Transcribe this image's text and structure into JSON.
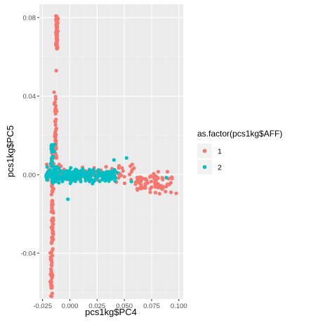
{
  "chart_data": {
    "type": "scatter",
    "xlabel": "pcs1kg$PC4",
    "ylabel": "pcs1kg$PC5",
    "xlim": [
      -0.028,
      0.104
    ],
    "ylim": [
      -0.0633,
      0.0868
    ],
    "x_ticks": [
      -0.025,
      0.0,
      0.025,
      0.05,
      0.075,
      0.1
    ],
    "x_tick_labels": [
      "-0.025",
      "0.000",
      "0.025",
      "0.050",
      "0.075",
      "0.100"
    ],
    "y_ticks": [
      -0.04,
      0.0,
      0.04,
      0.08
    ],
    "y_tick_labels": [
      "-0.04",
      "0.00",
      "0.04",
      "0.08"
    ],
    "grid": true,
    "legend": {
      "title": "as.factor(pcs1kg$AFF)",
      "placement": "right",
      "entries": [
        {
          "label": "1",
          "color": "#F8766D"
        },
        {
          "label": "2",
          "color": "#00BFC4"
        }
      ]
    },
    "series": [
      {
        "name": "1",
        "color": "#F8766D",
        "clusters": [
          {
            "shape": "vertical",
            "n": 60,
            "x": [
              -0.0135,
              -0.0105
            ],
            "y": [
              0.064,
              0.081
            ]
          },
          {
            "shape": "vertical",
            "n": 45,
            "x": [
              -0.0145,
              -0.0115
            ],
            "y": [
              0.008,
              0.04
            ]
          },
          {
            "shape": "vertical",
            "n": 70,
            "x": [
              -0.0175,
              -0.0145
            ],
            "y": [
              -0.0385,
              -0.0015
            ]
          },
          {
            "shape": "vertical",
            "n": 40,
            "x": [
              -0.0185,
              -0.0155
            ],
            "y": [
              -0.062,
              -0.038
            ]
          },
          {
            "shape": "horizontal-band",
            "n": 70,
            "x": [
              0.06,
              0.094
            ],
            "y": [
              -0.0115,
              0.003
            ]
          },
          {
            "shape": "horizontal-band",
            "n": 90,
            "x": [
              -0.022,
              0.06
            ],
            "y": [
              -0.006,
              0.0065
            ]
          }
        ],
        "points": [
          [
            -0.0125,
            0.053
          ],
          [
            -0.0145,
            0.042
          ],
          [
            0.0975,
            -0.0095
          ],
          [
            -0.0165,
            0.011
          ],
          [
            0.0895,
            0.0015
          ]
        ]
      },
      {
        "name": "2",
        "color": "#00BFC4",
        "clusters": [
          {
            "shape": "horizontal-band",
            "n": 260,
            "x": [
              -0.022,
              0.042
            ],
            "y": [
              -0.0055,
              0.005
            ]
          },
          {
            "shape": "vertical",
            "n": 40,
            "x": [
              -0.0185,
              -0.0135
            ],
            "y": [
              -0.0045,
              0.0155
            ]
          }
        ],
        "points": [
          [
            0.052,
            0.0085
          ],
          [
            0.0405,
            0.0075
          ],
          [
            0.0885,
            -0.0015
          ],
          [
            0.0565,
            -0.0035
          ],
          [
            0.0435,
            0.001
          ],
          [
            -0.0018,
            -0.0125
          ]
        ]
      }
    ]
  }
}
